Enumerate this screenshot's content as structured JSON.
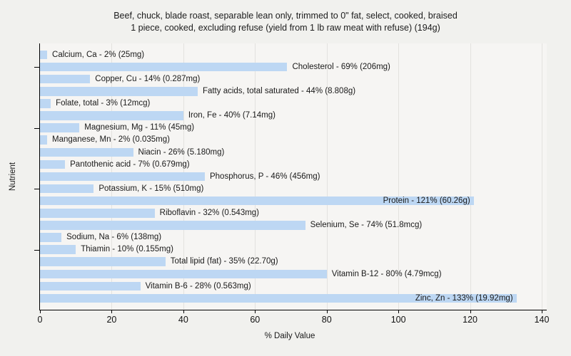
{
  "title": {
    "line1": "Beef, chuck, blade roast, separable lean only, trimmed to 0\" fat, select, cooked, braised",
    "line2": "1 piece, cooked, excluding refuse (yield from 1 lb raw meat with refuse) (194g)"
  },
  "chart_data": {
    "type": "bar",
    "orientation": "horizontal",
    "title": "Beef, chuck, blade roast, separable lean only, trimmed to 0\" fat, select, cooked, braised — 1 piece, cooked, excluding refuse (yield from 1 lb raw meat with refuse) (194g)",
    "xlabel": "% Daily Value",
    "ylabel": "Nutrient",
    "xlim": [
      0,
      140
    ],
    "xticks": [
      0,
      20,
      40,
      60,
      80,
      100,
      120,
      140
    ],
    "grid": true,
    "legend": false,
    "bar_color": "#bdd7f3",
    "plot_bg_color": "#f6f5f3",
    "page_bg_color": "#f1f1ee",
    "items": [
      {
        "name": "Calcium, Ca",
        "pct": 2,
        "amount": "25mg"
      },
      {
        "name": "Cholesterol",
        "pct": 69,
        "amount": "206mg"
      },
      {
        "name": "Copper, Cu",
        "pct": 14,
        "amount": "0.287mg"
      },
      {
        "name": "Fatty acids, total saturated",
        "pct": 44,
        "amount": "8.808g"
      },
      {
        "name": "Folate, total",
        "pct": 3,
        "amount": "12mcg"
      },
      {
        "name": "Iron, Fe",
        "pct": 40,
        "amount": "7.14mg"
      },
      {
        "name": "Magnesium, Mg",
        "pct": 11,
        "amount": "45mg"
      },
      {
        "name": "Manganese, Mn",
        "pct": 2,
        "amount": "0.035mg"
      },
      {
        "name": "Niacin",
        "pct": 26,
        "amount": "5.180mg"
      },
      {
        "name": "Pantothenic acid",
        "pct": 7,
        "amount": "0.679mg"
      },
      {
        "name": "Phosphorus, P",
        "pct": 46,
        "amount": "456mg"
      },
      {
        "name": "Potassium, K",
        "pct": 15,
        "amount": "510mg"
      },
      {
        "name": "Protein",
        "pct": 121,
        "amount": "60.26g"
      },
      {
        "name": "Riboflavin",
        "pct": 32,
        "amount": "0.543mg"
      },
      {
        "name": "Selenium, Se",
        "pct": 74,
        "amount": "51.8mcg"
      },
      {
        "name": "Sodium, Na",
        "pct": 6,
        "amount": "138mg"
      },
      {
        "name": "Thiamin",
        "pct": 10,
        "amount": "0.155mg"
      },
      {
        "name": "Total lipid (fat)",
        "pct": 35,
        "amount": "22.70g"
      },
      {
        "name": "Vitamin B-12",
        "pct": 80,
        "amount": "4.79mcg"
      },
      {
        "name": "Vitamin B-6",
        "pct": 28,
        "amount": "0.563mg"
      },
      {
        "name": "Zinc, Zn",
        "pct": 133,
        "amount": "19.92mg"
      }
    ]
  }
}
